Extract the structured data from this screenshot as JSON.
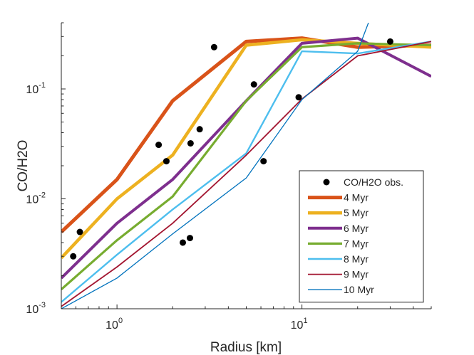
{
  "chart_data": {
    "type": "line",
    "title": "",
    "xlabel": "Radius [km]",
    "ylabel": "CO/H2O",
    "xscale": "log",
    "yscale": "log",
    "xlim": [
      0.5,
      50
    ],
    "ylim": [
      0.001,
      0.4
    ],
    "grid": false,
    "legend_position": "bottom-right",
    "x_ticks": [
      {
        "value": 1,
        "base": "10",
        "exp": "0"
      },
      {
        "value": 10,
        "base": "10",
        "exp": "1"
      }
    ],
    "y_ticks": [
      {
        "value": 0.001,
        "base": "10",
        "exp": "-3"
      },
      {
        "value": 0.01,
        "base": "10",
        "exp": "-2"
      },
      {
        "value": 0.1,
        "base": "10",
        "exp": "-1"
      }
    ],
    "observations": {
      "name": "CO/H2O obs.",
      "color": "#000000",
      "points": [
        {
          "x": 0.58,
          "y": 0.003
        },
        {
          "x": 0.63,
          "y": 0.005
        },
        {
          "x": 1.68,
          "y": 0.031
        },
        {
          "x": 1.85,
          "y": 0.022
        },
        {
          "x": 2.27,
          "y": 0.004
        },
        {
          "x": 2.48,
          "y": 0.0044
        },
        {
          "x": 2.5,
          "y": 0.032
        },
        {
          "x": 2.8,
          "y": 0.043
        },
        {
          "x": 3.35,
          "y": 0.24
        },
        {
          "x": 5.5,
          "y": 0.11
        },
        {
          "x": 6.2,
          "y": 0.022
        },
        {
          "x": 9.6,
          "y": 0.084
        },
        {
          "x": 30,
          "y": 0.27
        }
      ]
    },
    "series": [
      {
        "name": "4 Myr",
        "color": "#D95319",
        "width": 5,
        "points": [
          [
            0.5,
            0.005
          ],
          [
            1,
            0.015
          ],
          [
            2,
            0.078
          ],
          [
            5,
            0.27
          ],
          [
            10,
            0.29
          ],
          [
            20,
            0.24
          ],
          [
            50,
            0.25
          ]
        ]
      },
      {
        "name": "5 Myr",
        "color": "#EDB120",
        "width": 4.5,
        "points": [
          [
            0.5,
            0.0029
          ],
          [
            1,
            0.01
          ],
          [
            2,
            0.025
          ],
          [
            5,
            0.25
          ],
          [
            10,
            0.28
          ],
          [
            20,
            0.26
          ],
          [
            50,
            0.24
          ]
        ]
      },
      {
        "name": "6 Myr",
        "color": "#7E2F8E",
        "width": 4,
        "points": [
          [
            0.5,
            0.0019
          ],
          [
            1,
            0.006
          ],
          [
            2,
            0.015
          ],
          [
            5,
            0.078
          ],
          [
            10,
            0.26
          ],
          [
            20,
            0.29
          ],
          [
            50,
            0.13
          ]
        ]
      },
      {
        "name": "7 Myr",
        "color": "#77AC30",
        "width": 3.2,
        "points": [
          [
            0.5,
            0.0015
          ],
          [
            1,
            0.0042
          ],
          [
            2,
            0.0105
          ],
          [
            5,
            0.078
          ],
          [
            10,
            0.24
          ],
          [
            20,
            0.26
          ],
          [
            50,
            0.25
          ]
        ]
      },
      {
        "name": "8 Myr",
        "color": "#4DBEEE",
        "width": 2.4,
        "points": [
          [
            0.5,
            0.00115
          ],
          [
            1,
            0.0031
          ],
          [
            2,
            0.008
          ],
          [
            5,
            0.026
          ],
          [
            10,
            0.22
          ],
          [
            20,
            0.21
          ],
          [
            50,
            0.27
          ]
        ]
      },
      {
        "name": "9 Myr",
        "color": "#A2142F",
        "width": 1.8,
        "points": [
          [
            0.5,
            0.00105
          ],
          [
            1,
            0.0024
          ],
          [
            2,
            0.006
          ],
          [
            5,
            0.025
          ],
          [
            10,
            0.081
          ],
          [
            20,
            0.2
          ],
          [
            50,
            0.27
          ]
        ]
      },
      {
        "name": "10 Myr",
        "color": "#0072BD",
        "width": 1.3,
        "points": [
          [
            0.5,
            0.001
          ],
          [
            1,
            0.0019
          ],
          [
            2,
            0.0048
          ],
          [
            5,
            0.0155
          ],
          [
            10,
            0.08
          ],
          [
            20,
            0.22
          ],
          [
            23.5,
            0.45
          ]
        ]
      }
    ]
  }
}
